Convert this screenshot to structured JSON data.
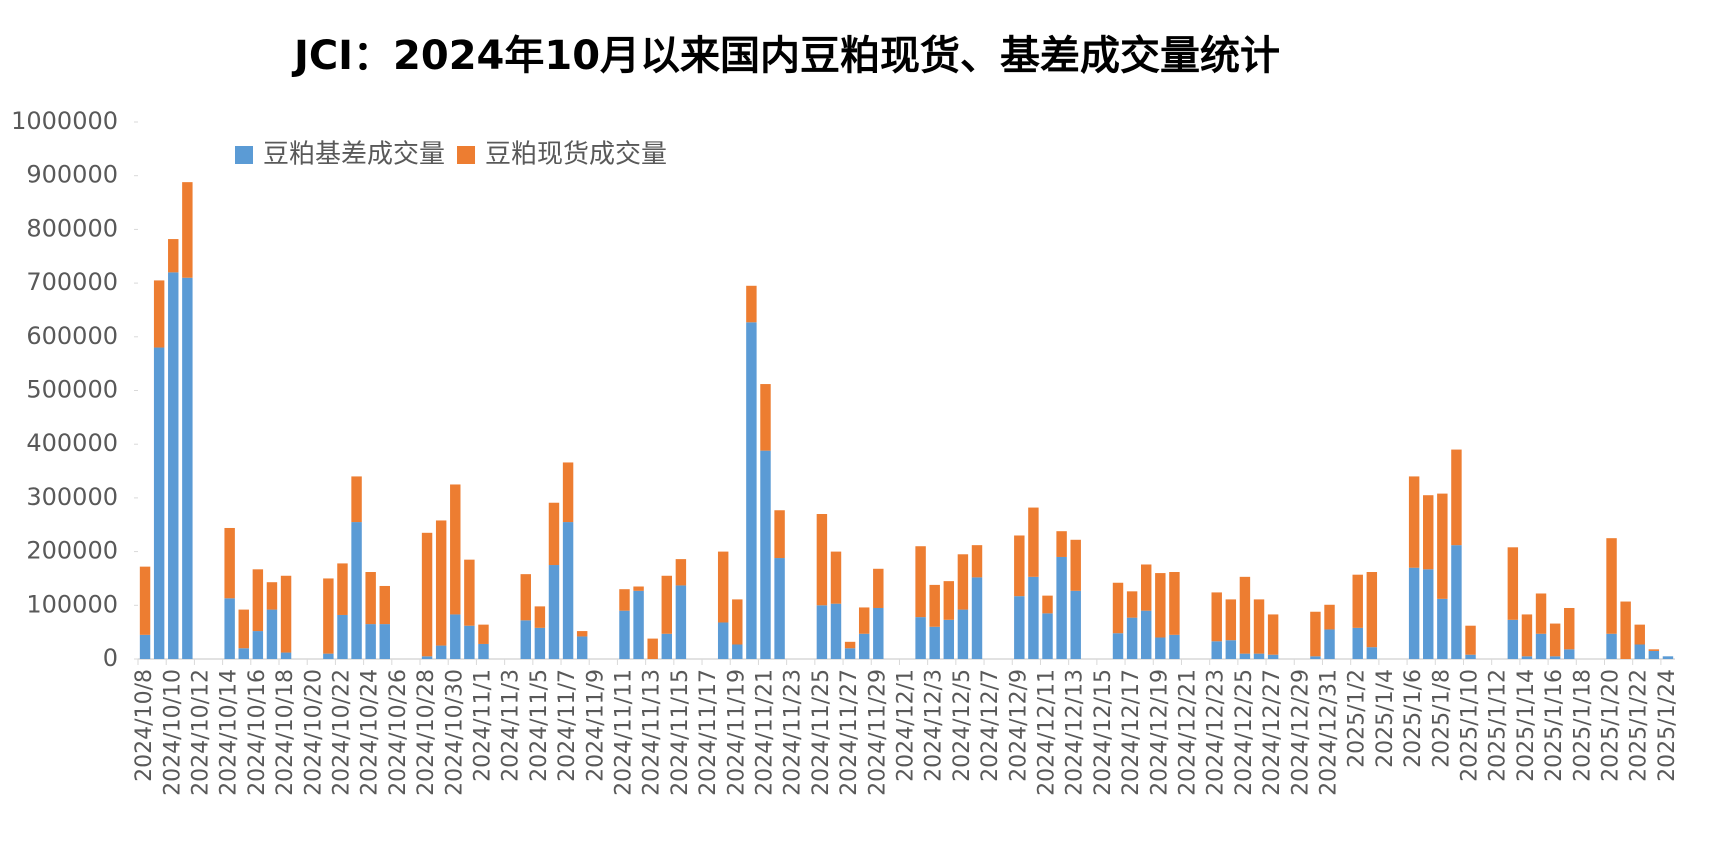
{
  "chart_data": {
    "type": "stacked_bar",
    "title": "JCI：2024年10月以来国内豆粕现货、基差成交量统计",
    "categories": [
      "2024/10/8",
      null,
      "2024/10/10",
      null,
      "2024/10/12",
      null,
      "2024/10/14",
      null,
      "2024/10/16",
      null,
      "2024/10/18",
      null,
      "2024/10/20",
      null,
      "2024/10/22",
      null,
      "2024/10/24",
      null,
      "2024/10/26",
      null,
      "2024/10/28",
      null,
      "2024/10/30",
      null,
      "2024/11/1",
      null,
      "2024/11/3",
      null,
      "2024/11/5",
      null,
      "2024/11/7",
      null,
      "2024/11/9",
      null,
      "2024/11/11",
      null,
      "2024/11/13",
      null,
      "2024/11/15",
      null,
      "2024/11/17",
      null,
      "2024/11/19",
      null,
      "2024/11/21",
      null,
      "2024/11/23",
      null,
      "2024/11/25",
      null,
      "2024/11/27",
      null,
      "2024/11/29",
      null,
      "2024/12/1",
      null,
      "2024/12/3",
      null,
      "2024/12/5",
      null,
      "2024/12/7",
      null,
      "2024/12/9",
      null,
      "2024/12/11",
      null,
      "2024/12/13",
      null,
      "2024/12/15",
      null,
      "2024/12/17",
      null,
      "2024/12/19",
      null,
      "2024/12/21",
      null,
      "2024/12/23",
      null,
      "2024/12/25",
      null,
      "2024/12/27",
      null,
      "2024/12/29",
      null,
      "2024/12/31",
      null,
      "2025/1/2",
      null,
      "2025/1/4",
      null,
      "2025/1/6",
      null,
      "2025/1/8",
      null,
      "2025/1/10",
      null,
      "2025/1/12",
      null,
      "2025/1/14",
      null,
      "2025/1/16",
      null,
      "2025/1/18",
      null,
      "2025/1/20",
      null,
      "2025/1/22",
      null,
      "2025/1/24"
    ],
    "series": [
      {
        "name": "豆粕基差成交量",
        "color": "#5b9bd5",
        "values": [
          45000,
          580000,
          720000,
          710000,
          null,
          null,
          113000,
          20000,
          52000,
          92000,
          12000,
          null,
          null,
          10000,
          82000,
          255000,
          65000,
          65000,
          null,
          null,
          5000,
          25000,
          83000,
          62000,
          28000,
          null,
          null,
          72000,
          58000,
          175000,
          255000,
          42000,
          null,
          null,
          90000,
          127000,
          0,
          47000,
          137000,
          null,
          null,
          68000,
          27000,
          627000,
          388000,
          188000,
          null,
          null,
          100000,
          103000,
          20000,
          47000,
          95000,
          null,
          null,
          78000,
          60000,
          73000,
          92000,
          152000,
          null,
          null,
          117000,
          153000,
          85000,
          190000,
          127000,
          null,
          null,
          48000,
          77000,
          90000,
          40000,
          45000,
          null,
          null,
          33000,
          35000,
          10000,
          10000,
          8000,
          null,
          null,
          5000,
          55000,
          null,
          58000,
          22000,
          null,
          null,
          170000,
          167000,
          112000,
          212000,
          8000,
          null,
          null,
          73000,
          5000,
          47000,
          5000,
          18000,
          null,
          null,
          47000,
          0,
          27000,
          15000,
          5000
        ]
      },
      {
        "name": "豆粕现货成交量",
        "color": "#ed7d31",
        "values": [
          127000,
          125000,
          62000,
          178000,
          null,
          null,
          131000,
          72000,
          115000,
          51000,
          143000,
          null,
          null,
          140000,
          96000,
          85000,
          97000,
          71000,
          null,
          null,
          230000,
          233000,
          242000,
          123000,
          36000,
          null,
          null,
          86000,
          40000,
          116000,
          111000,
          10000,
          null,
          null,
          40000,
          8000,
          38000,
          108000,
          49000,
          null,
          null,
          132000,
          84000,
          68000,
          124000,
          89000,
          null,
          null,
          170000,
          97000,
          12000,
          49000,
          73000,
          null,
          null,
          132000,
          78000,
          72000,
          103000,
          60000,
          null,
          null,
          113000,
          129000,
          33000,
          48000,
          95000,
          null,
          null,
          94000,
          49000,
          86000,
          120000,
          117000,
          null,
          null,
          91000,
          76000,
          143000,
          101000,
          75000,
          null,
          null,
          83000,
          46000,
          null,
          99000,
          140000,
          null,
          null,
          170000,
          138000,
          196000,
          178000,
          54000,
          null,
          null,
          135000,
          78000,
          75000,
          61000,
          77000,
          null,
          null,
          178000,
          107000,
          37000,
          3000,
          0
        ]
      }
    ],
    "ylim": [
      0,
      1000000
    ],
    "yticks": [
      0,
      100000,
      200000,
      300000,
      400000,
      500000,
      600000,
      700000,
      800000,
      900000,
      1000000
    ],
    "legend": "top-left"
  }
}
